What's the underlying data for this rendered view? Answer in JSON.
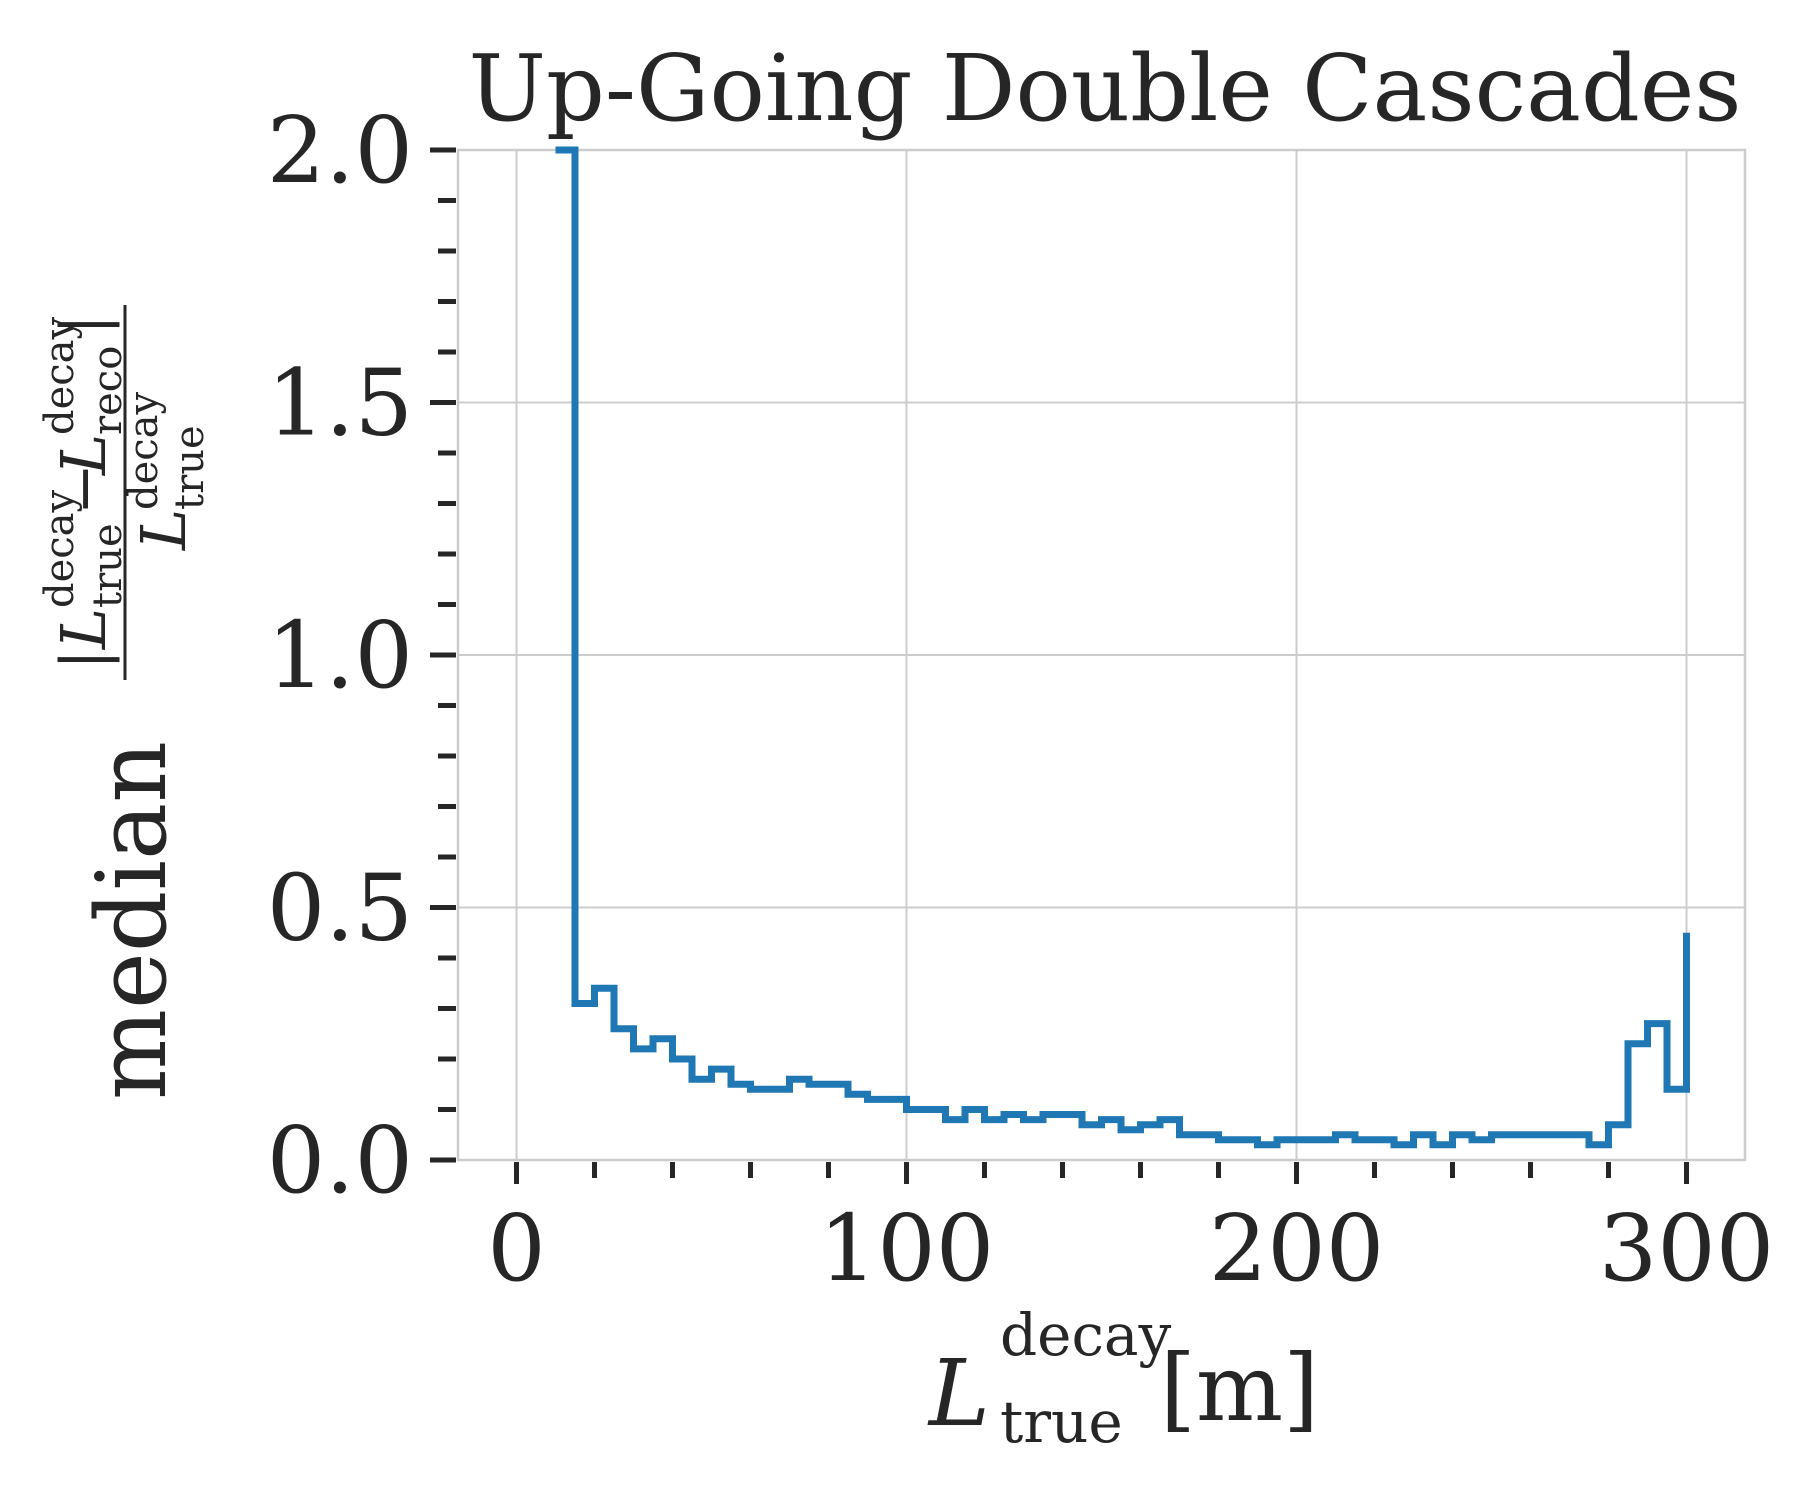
{
  "chart_data": {
    "type": "line",
    "step": true,
    "title": "Up-Going Double Cascades",
    "xlabel": {
      "symbol": "L",
      "superscript": "decay",
      "subscript": "true",
      "unit": "[m]"
    },
    "ylabel": {
      "prefix": "median",
      "numerator": {
        "left": "|L",
        "left_sup": "decay",
        "left_sub": "true",
        "minus": "−",
        "right": "L",
        "right_sup": "decay",
        "right_sub": "reco",
        "close": "|"
      },
      "denominator": {
        "symbol": "L",
        "sup": "decay",
        "sub": "true"
      }
    },
    "xlim": [
      -15,
      315
    ],
    "ylim": [
      0,
      2.0
    ],
    "x_ticks": [
      0,
      100,
      200,
      300
    ],
    "x_tick_labels": [
      "0",
      "100",
      "200",
      "300"
    ],
    "y_ticks": [
      0.0,
      0.5,
      1.0,
      1.5,
      2.0
    ],
    "y_tick_labels": [
      "0.0",
      "0.5",
      "1.0",
      "1.5",
      "2.0"
    ],
    "x_minor_step": 20,
    "y_minor_step": 0.1,
    "grid": true,
    "series_color": "#1f77b4",
    "series": [
      {
        "bin_edges": [
          10,
          15,
          20,
          25,
          30,
          35,
          40,
          45,
          50,
          55,
          60,
          65,
          70,
          75,
          80,
          85,
          90,
          95,
          100,
          105,
          110,
          115,
          120,
          125,
          130,
          135,
          140,
          145,
          150,
          155,
          160,
          165,
          170,
          175,
          180,
          185,
          190,
          195,
          200,
          205,
          210,
          215,
          220,
          225,
          230,
          235,
          240,
          245,
          250,
          255,
          260,
          265,
          270,
          275,
          280,
          285,
          290,
          295,
          300
        ],
        "values": [
          2.0,
          0.31,
          0.34,
          0.26,
          0.22,
          0.24,
          0.2,
          0.16,
          0.18,
          0.15,
          0.14,
          0.14,
          0.16,
          0.15,
          0.15,
          0.13,
          0.12,
          0.12,
          0.1,
          0.1,
          0.08,
          0.1,
          0.08,
          0.09,
          0.08,
          0.09,
          0.09,
          0.07,
          0.08,
          0.06,
          0.07,
          0.08,
          0.05,
          0.05,
          0.04,
          0.04,
          0.03,
          0.04,
          0.04,
          0.04,
          0.05,
          0.04,
          0.04,
          0.03,
          0.05,
          0.03,
          0.05,
          0.04,
          0.05,
          0.05,
          0.05,
          0.05,
          0.05,
          0.03,
          0.07,
          0.23,
          0.27,
          0.14,
          0.45
        ]
      }
    ]
  }
}
